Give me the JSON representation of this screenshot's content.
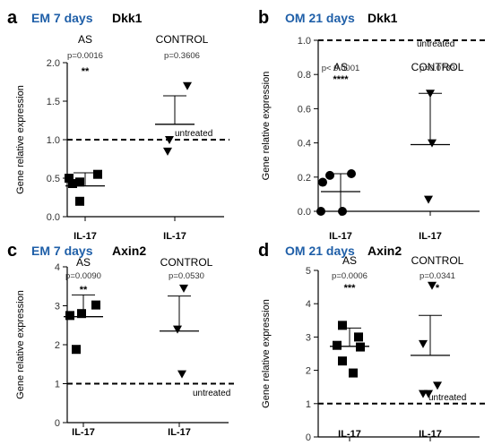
{
  "chart_data": [
    {
      "type": "scatter",
      "panel_letter": "a",
      "condition": "EM 7 days",
      "gene": "Dkk1",
      "ylabel": "Gene relative expression",
      "ylim": [
        0,
        2.0
      ],
      "yticks": [
        "0.0",
        "0.5",
        "1.0",
        "1.5",
        "2.0"
      ],
      "reference_line": {
        "value": 1.0,
        "label": "untreated"
      },
      "groups": [
        {
          "name": "AS",
          "xlabel": "IL-17",
          "marker": "square",
          "p_value": "p=0.0016",
          "stars": "**",
          "mean": 0.4,
          "error_upper": 0.57,
          "error_lower": 0.4,
          "values": [
            0.5,
            0.45,
            0.43,
            0.55,
            0.2
          ]
        },
        {
          "name": "CONTROL",
          "xlabel": "IL-17",
          "marker": "triangle",
          "p_value": "p=0.3606",
          "stars": "",
          "mean": 1.2,
          "error_upper": 1.57,
          "error_lower": 1.2,
          "values": [
            1.7,
            1.0,
            0.85
          ]
        }
      ]
    },
    {
      "type": "scatter",
      "panel_letter": "b",
      "condition": "OM 21 days",
      "gene": "Dkk1",
      "ylabel": "Gene relative expression",
      "ylim": [
        0,
        1.0
      ],
      "yticks": [
        "0.0",
        "0.2",
        "0.4",
        "0.6",
        "0.8",
        "1.0"
      ],
      "reference_line": {
        "value": 1.0,
        "label": "untreated"
      },
      "groups": [
        {
          "name": "AS",
          "xlabel": "IL-17",
          "marker": "circle",
          "p_value": "p< 0.0001",
          "stars": "****",
          "mean": 0.115,
          "error_upper": 0.22,
          "error_lower": 0.0,
          "values": [
            0.21,
            0.22,
            0.17,
            0.0,
            0.0
          ]
        },
        {
          "name": "CONTROL",
          "xlabel": "IL-17",
          "marker": "triangle",
          "p_value": "p=0.0733",
          "stars": "",
          "mean": 0.39,
          "error_upper": 0.69,
          "error_lower": 0.39,
          "values": [
            0.69,
            0.4,
            0.07
          ]
        }
      ]
    },
    {
      "type": "scatter",
      "panel_letter": "c",
      "condition": "EM 7 days",
      "gene": "Axin2",
      "ylabel": "Gene relative expression",
      "ylim": [
        0,
        4
      ],
      "yticks": [
        "0",
        "1",
        "2",
        "3",
        "4"
      ],
      "reference_line": {
        "value": 1.0,
        "label": "untreated"
      },
      "groups": [
        {
          "name": "AS",
          "xlabel": "IL-17",
          "marker": "square",
          "p_value": "p=0.0090",
          "stars": "**",
          "mean": 2.72,
          "error_upper": 3.28,
          "error_lower": 2.72,
          "values": [
            2.75,
            2.8,
            3.02,
            1.88
          ]
        },
        {
          "name": "CONTROL",
          "xlabel": "IL-17",
          "marker": "triangle",
          "p_value": "p=0.0530",
          "stars": "",
          "mean": 2.35,
          "error_upper": 3.25,
          "error_lower": 2.35,
          "values": [
            3.45,
            2.4,
            1.25
          ]
        }
      ]
    },
    {
      "type": "scatter",
      "panel_letter": "d",
      "condition": "OM 21 days",
      "gene": "Axin2",
      "ylabel": "Gene relative expression",
      "ylim": [
        0,
        5
      ],
      "yticks": [
        "0",
        "1",
        "2",
        "3",
        "4",
        "5"
      ],
      "reference_line": {
        "value": 1.0,
        "label": "untreated"
      },
      "groups": [
        {
          "name": "AS",
          "xlabel": "IL-17",
          "marker": "square",
          "p_value": "p=0.0006",
          "stars": "***",
          "mean": 2.72,
          "error_upper": 3.27,
          "error_lower": 2.72,
          "values": [
            3.35,
            3.0,
            2.75,
            2.7,
            2.28,
            1.92
          ]
        },
        {
          "name": "CONTROL",
          "xlabel": "IL-17",
          "marker": "triangle",
          "p_value": "p=0.0341",
          "stars": "*",
          "mean": 2.45,
          "error_upper": 3.65,
          "error_lower": 2.45,
          "values": [
            4.55,
            2.8,
            1.55,
            1.3,
            1.3
          ]
        }
      ]
    }
  ],
  "colors": {
    "condition_label": "#1f5fa8",
    "ink": "#000000",
    "axis_text": "#333333"
  }
}
